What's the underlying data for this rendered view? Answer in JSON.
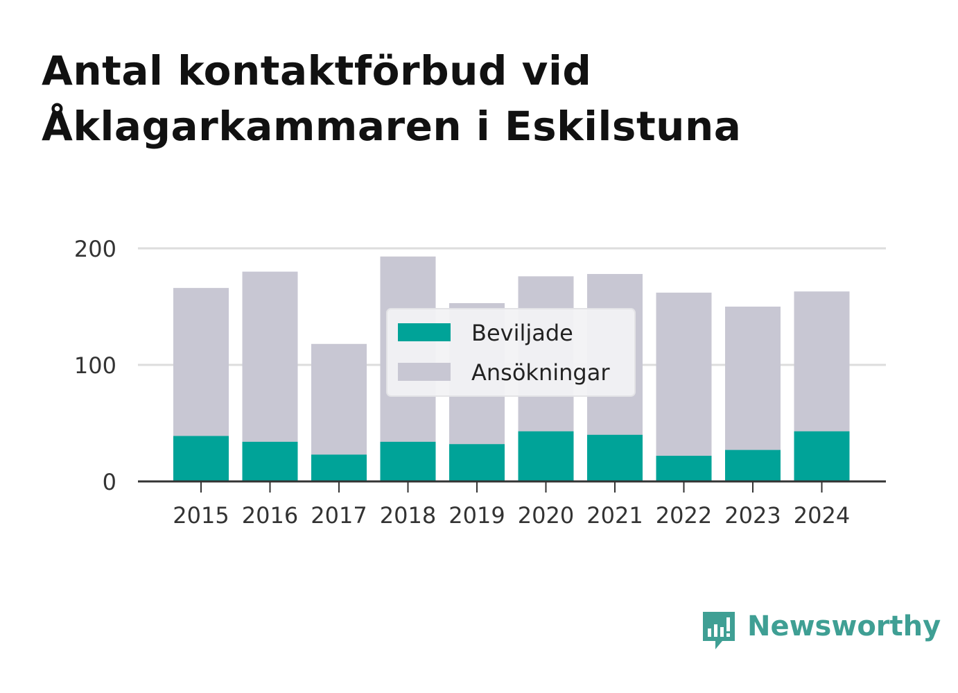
{
  "title": {
    "line1": "Antal kontaktförbud vid",
    "line2": "Åklagarkammaren i Eskilstuna"
  },
  "brand": {
    "name": "Newsworthy",
    "color": "#3f9f94",
    "icon": "newsworthy-chart-bubble-icon"
  },
  "colors": {
    "beviljade": "#00a398",
    "ansokningar": "#c8c7d3",
    "grid": "#dddddd",
    "axis": "#333333",
    "text": "#333333"
  },
  "chart_data": {
    "type": "bar",
    "stacked": false,
    "overlapping": true,
    "categories": [
      "2015",
      "2016",
      "2017",
      "2018",
      "2019",
      "2020",
      "2021",
      "2022",
      "2023",
      "2024"
    ],
    "series": [
      {
        "name": "Ansökningar",
        "values": [
          166,
          180,
          118,
          193,
          153,
          176,
          178,
          162,
          150,
          163
        ]
      },
      {
        "name": "Beviljade",
        "values": [
          39,
          34,
          23,
          34,
          32,
          43,
          40,
          22,
          27,
          43
        ]
      }
    ],
    "ylim": [
      0,
      200
    ],
    "yticks": [
      0,
      100,
      200
    ],
    "grid": true,
    "legend": {
      "placement": "center",
      "entries": [
        "Beviljade",
        "Ansökningar"
      ]
    },
    "xlabel": "",
    "ylabel": ""
  }
}
